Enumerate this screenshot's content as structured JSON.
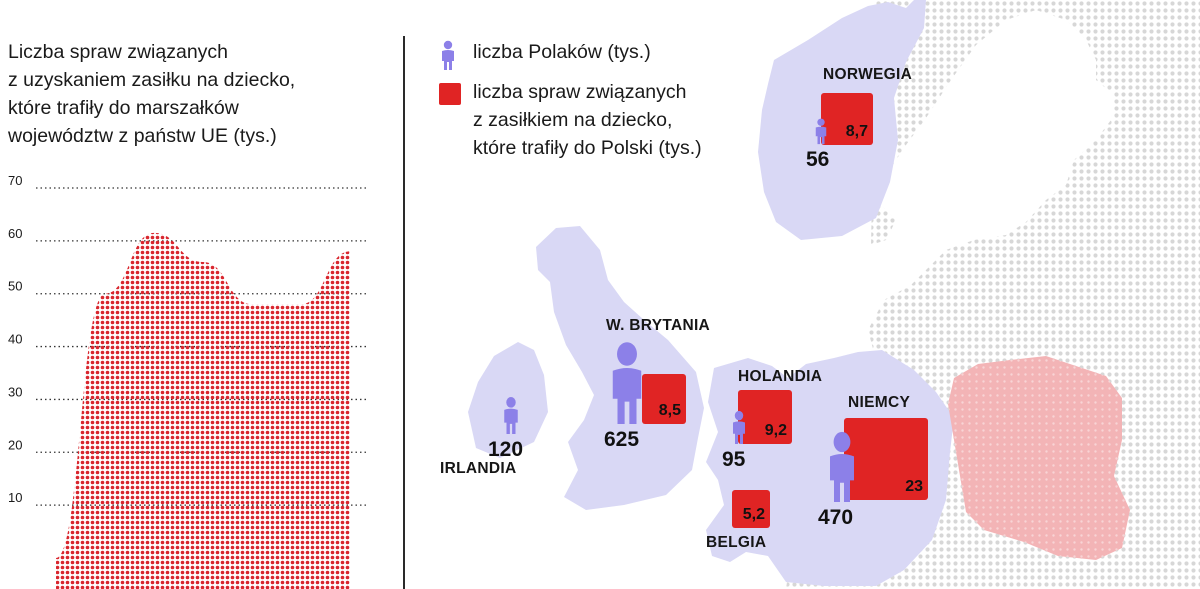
{
  "left_panel": {
    "title_lines": [
      "Liczba spraw związanych",
      "z uzyskaniem zasiłku na dziecko,",
      "które trafiły do marszałków",
      "województw z państw UE (tys.)"
    ]
  },
  "legend": {
    "people_lines": [
      "liczba Polaków (tys.)"
    ],
    "cases_lines": [
      "liczba spraw związanych",
      "z zasiłkiem na dziecko,",
      "które trafiły do Polski (tys.)"
    ]
  },
  "countries": [
    {
      "id": "norwegia",
      "name": "NORWEGIA",
      "people": "56",
      "cases": "8,7"
    },
    {
      "id": "wielka-brytania",
      "name": "W. BRYTANIA",
      "people": "625",
      "cases": "8,5"
    },
    {
      "id": "irlandia",
      "name": "IRLANDIA",
      "people": "120",
      "cases": ""
    },
    {
      "id": "holandia",
      "name": "HOLANDIA",
      "people": "95",
      "cases": "9,2"
    },
    {
      "id": "niemcy",
      "name": "NIEMCY",
      "people": "470",
      "cases": "23"
    },
    {
      "id": "belgia",
      "name": "BELGIA",
      "people": "",
      "cases": "5,2"
    }
  ],
  "colors": {
    "cases_red": "#e02424",
    "people_purple": "#8c80e8",
    "land_lavender": "#d9d8f5",
    "poland_pink": "#f2aeb1",
    "dots_grey": "#d7d7d7",
    "area_red": "#d9262e"
  },
  "chart_data": {
    "type": "area",
    "title": "Liczba spraw związanych z uzyskaniem zasiłku na dziecko, które trafiły do marszałków województw z państw UE (tys.)",
    "y_ticks": [
      "70",
      "60",
      "50",
      "40",
      "30",
      "20",
      "10"
    ],
    "ylim": [
      0,
      70
    ],
    "grid": true,
    "series": [
      {
        "values": [
          0,
          50,
          61.5,
          56,
          48,
          48,
          58
        ]
      }
    ]
  }
}
